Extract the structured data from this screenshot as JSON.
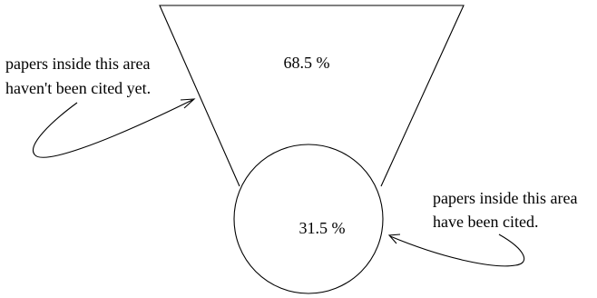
{
  "funnel": {
    "percent_label": "68.5 %"
  },
  "circle": {
    "percent_label": "31.5 %"
  },
  "annotations": {
    "uncited": {
      "line1": "papers inside this area",
      "line2": "haven't been cited yet."
    },
    "cited": {
      "line1": "papers inside this area",
      "line2": "have been cited."
    }
  }
}
